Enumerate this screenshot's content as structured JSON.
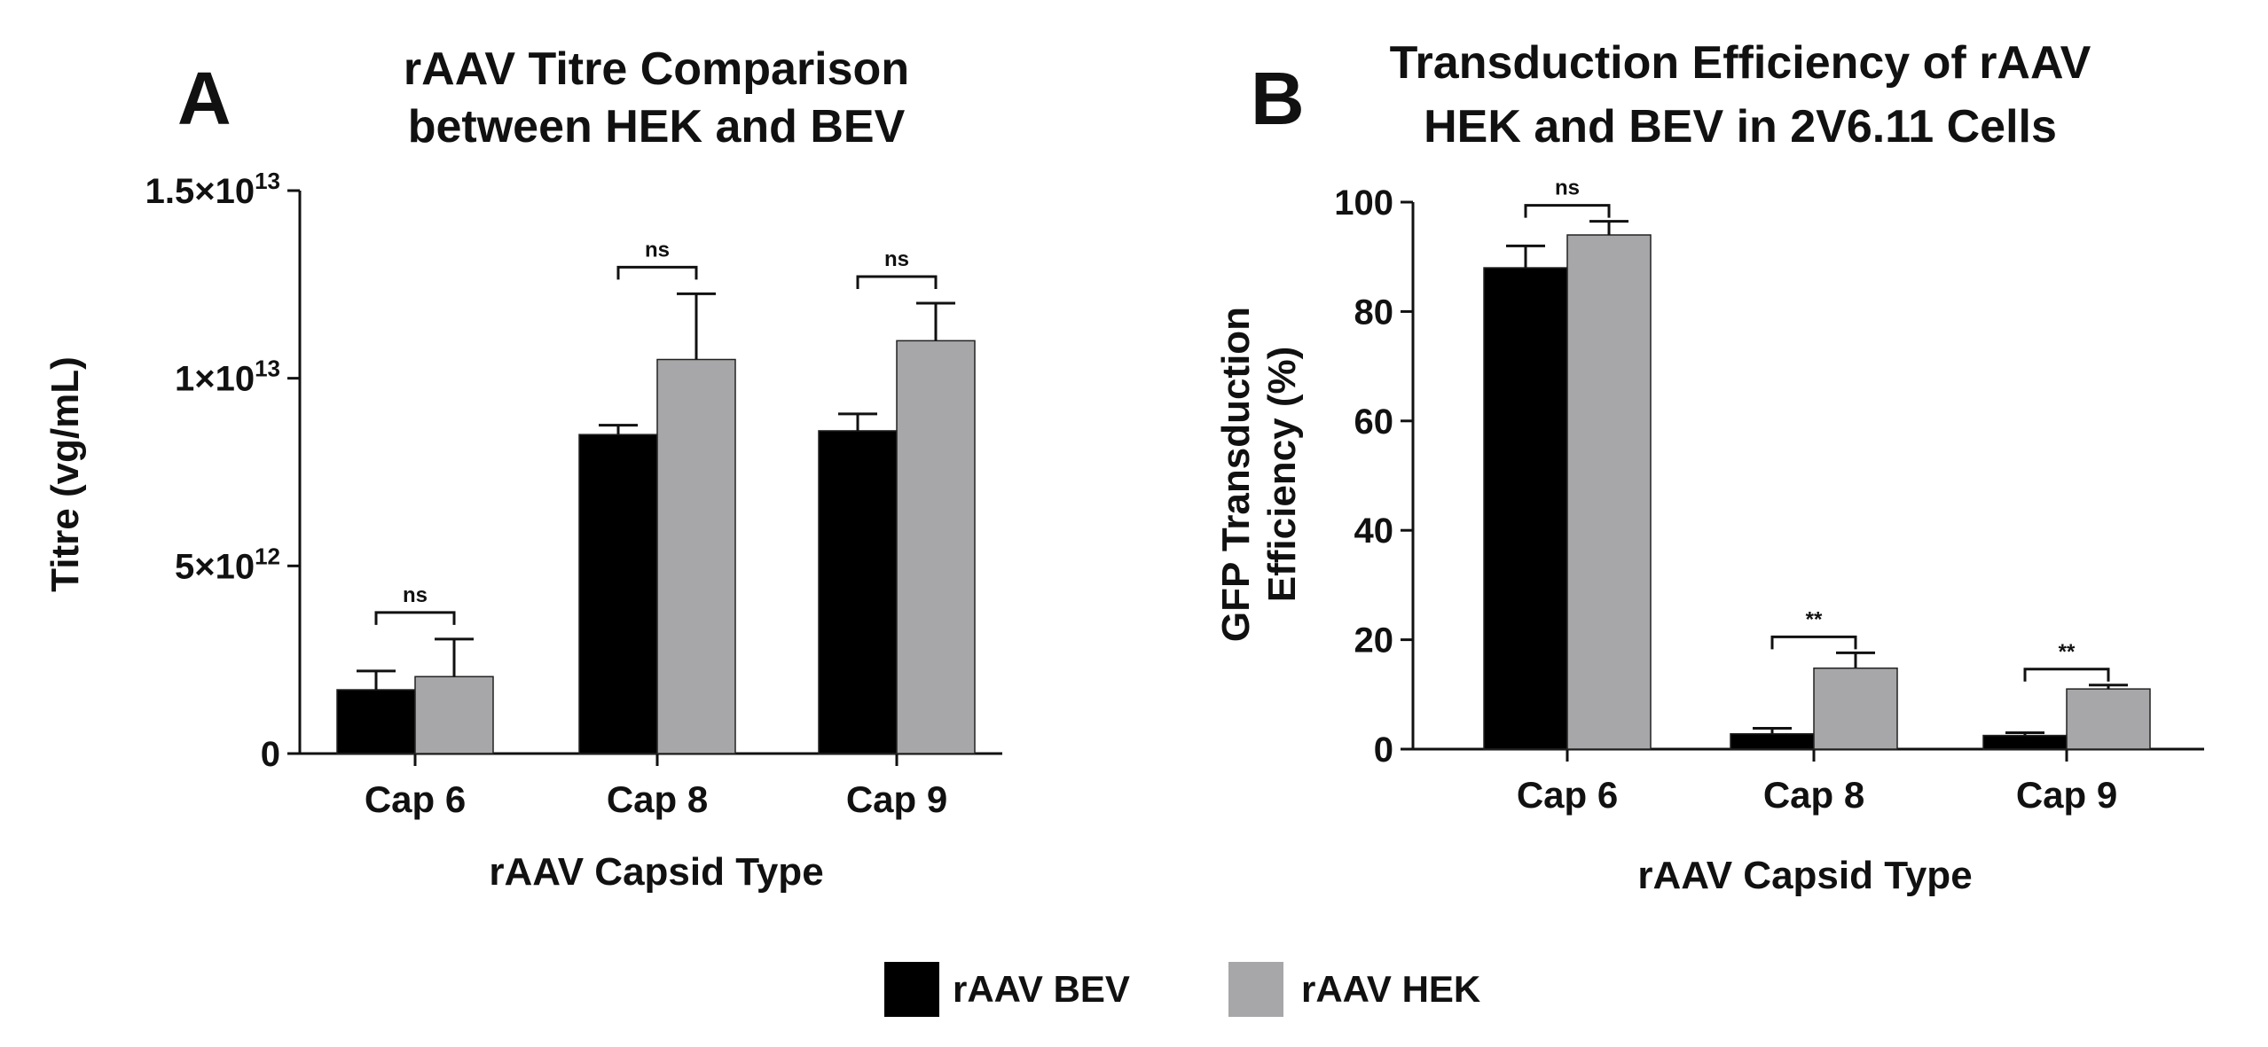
{
  "legend": {
    "bev_label": "rAAV BEV",
    "hek_label": "rAAV HEK"
  },
  "colors": {
    "bev": "#000000",
    "hek": "#a7a7a9",
    "axis": "#111111"
  },
  "chart_data": [
    {
      "panel": "A",
      "type": "bar",
      "title_lines": [
        "rAAV Titre Comparison",
        "between HEK and BEV"
      ],
      "xlabel": "rAAV Capsid Type",
      "ylabel": "Titre (vg/mL)",
      "categories": [
        "Cap 6",
        "Cap 8",
        "Cap 9"
      ],
      "ylim": [
        0,
        15000000000000
      ],
      "yticks": [
        {
          "value": 0,
          "base": "0",
          "exp": ""
        },
        {
          "value": 5000000000000,
          "base": "5×10",
          "exp": "12"
        },
        {
          "value": 10000000000000,
          "base": "1×10",
          "exp": "13"
        },
        {
          "value": 15000000000000,
          "base": "1.5×10",
          "exp": "13"
        }
      ],
      "series": [
        {
          "name": "rAAV BEV",
          "values": [
            1700000000000,
            8500000000000,
            8600000000000
          ],
          "errors": [
            500000000000,
            250000000000,
            450000000000
          ]
        },
        {
          "name": "rAAV HEK",
          "values": [
            2050000000000,
            10500000000000,
            11000000000000
          ],
          "errors": [
            1000000000000,
            1750000000000,
            1000000000000
          ]
        }
      ],
      "significance": [
        {
          "category": 0,
          "label": "ns"
        },
        {
          "category": 1,
          "label": "ns"
        },
        {
          "category": 2,
          "label": "ns"
        }
      ]
    },
    {
      "panel": "B",
      "type": "bar",
      "title_lines": [
        "Transduction Efficiency of rAAV",
        "HEK and BEV in 2V6.11 Cells"
      ],
      "xlabel": "rAAV Capsid Type",
      "ylabel_lines": [
        "GFP Transduction",
        "Efficiency (%)"
      ],
      "categories": [
        "Cap 6",
        "Cap 8",
        "Cap 9"
      ],
      "ylim": [
        0,
        100
      ],
      "yticks": [
        {
          "value": 0,
          "base": "0",
          "exp": ""
        },
        {
          "value": 20,
          "base": "20",
          "exp": ""
        },
        {
          "value": 40,
          "base": "40",
          "exp": ""
        },
        {
          "value": 60,
          "base": "60",
          "exp": ""
        },
        {
          "value": 80,
          "base": "80",
          "exp": ""
        },
        {
          "value": 100,
          "base": "100",
          "exp": ""
        }
      ],
      "series": [
        {
          "name": "rAAV BEV",
          "values": [
            88,
            2.8,
            2.5
          ],
          "errors": [
            4,
            1,
            0.5
          ]
        },
        {
          "name": "rAAV HEK",
          "values": [
            94,
            14.8,
            11
          ],
          "errors": [
            2.5,
            2.8,
            0.7
          ]
        }
      ],
      "significance": [
        {
          "category": 0,
          "label": "ns"
        },
        {
          "category": 1,
          "label": "**"
        },
        {
          "category": 2,
          "label": "**"
        }
      ]
    }
  ]
}
